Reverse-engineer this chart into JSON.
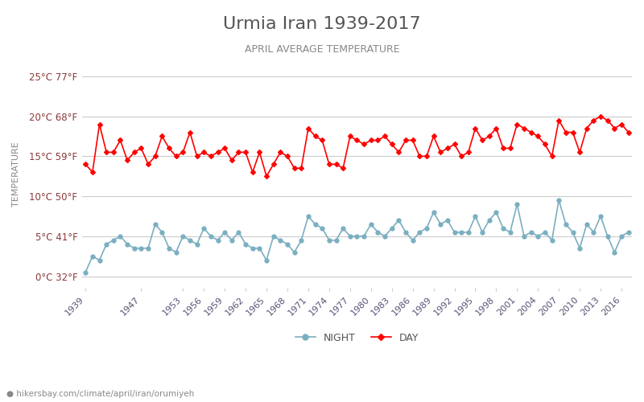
{
  "title": "Urmia Iran 1939-2017",
  "subtitle": "APRIL AVERAGE TEMPERATURE",
  "ylabel": "TEMPERATURE",
  "footer": "hikersbay.com/climate/april/iran/orumiyeh",
  "title_color": "#555555",
  "subtitle_color": "#777777",
  "ylabel_color": "#888888",
  "background_color": "#ffffff",
  "grid_color": "#cccccc",
  "day_color": "#ff0000",
  "night_color": "#7aafc0",
  "years": [
    1939,
    1940,
    1941,
    1942,
    1943,
    1944,
    1945,
    1946,
    1947,
    1948,
    1949,
    1950,
    1951,
    1952,
    1953,
    1954,
    1955,
    1956,
    1957,
    1958,
    1959,
    1960,
    1961,
    1962,
    1963,
    1964,
    1965,
    1966,
    1967,
    1968,
    1969,
    1970,
    1971,
    1972,
    1973,
    1974,
    1975,
    1976,
    1977,
    1978,
    1979,
    1980,
    1981,
    1982,
    1983,
    1984,
    1985,
    1986,
    1987,
    1988,
    1989,
    1990,
    1991,
    1992,
    1993,
    1994,
    1995,
    1996,
    1997,
    1998,
    1999,
    2000,
    2001,
    2002,
    2003,
    2004,
    2005,
    2006,
    2007,
    2008,
    2009,
    2010,
    2011,
    2012,
    2013,
    2014,
    2015,
    2016,
    2017
  ],
  "day_temps": [
    14.0,
    13.0,
    19.0,
    15.5,
    15.5,
    17.0,
    14.5,
    15.5,
    16.0,
    14.0,
    15.0,
    17.5,
    16.0,
    15.0,
    15.5,
    18.0,
    15.0,
    15.5,
    15.0,
    15.5,
    16.0,
    14.5,
    15.5,
    15.5,
    13.0,
    15.5,
    12.5,
    14.0,
    15.5,
    15.0,
    13.5,
    13.5,
    18.5,
    17.5,
    17.0,
    14.0,
    14.0,
    13.5,
    17.5,
    17.0,
    16.5,
    17.0,
    17.0,
    17.5,
    16.5,
    15.5,
    17.0,
    17.0,
    15.0,
    15.0,
    17.5,
    15.5,
    16.0,
    16.5,
    15.0,
    15.5,
    18.5,
    17.0,
    17.5,
    18.5,
    16.0,
    16.0,
    19.0,
    18.5,
    18.0,
    17.5,
    16.5,
    15.0,
    19.5,
    18.0,
    18.0,
    15.5,
    18.5,
    19.5,
    20.0,
    19.5,
    18.5,
    19.0,
    18.0
  ],
  "night_temps": [
    0.5,
    2.5,
    2.0,
    4.0,
    4.5,
    5.0,
    4.0,
    3.5,
    3.5,
    3.5,
    6.5,
    5.5,
    3.5,
    3.0,
    5.0,
    4.5,
    4.0,
    6.0,
    5.0,
    4.5,
    5.5,
    4.5,
    5.5,
    4.0,
    3.5,
    3.5,
    2.0,
    5.0,
    4.5,
    4.0,
    3.0,
    4.5,
    7.5,
    6.5,
    6.0,
    4.5,
    4.5,
    6.0,
    5.0,
    5.0,
    5.0,
    6.5,
    5.5,
    5.0,
    6.0,
    7.0,
    5.5,
    4.5,
    5.5,
    6.0,
    8.0,
    6.5,
    7.0,
    5.5,
    5.5,
    5.5,
    7.5,
    5.5,
    7.0,
    8.0,
    6.0,
    5.5,
    9.0,
    5.0,
    5.5,
    5.0,
    5.5,
    4.5,
    9.5,
    6.5,
    5.5,
    3.5,
    6.5,
    5.5,
    7.5,
    5.0,
    3.0,
    5.0,
    5.5
  ],
  "yticks_celsius": [
    0,
    5,
    10,
    15,
    20,
    25
  ],
  "yticks_labels": [
    "0°C 32°F",
    "5°C 41°F",
    "10°C 50°F",
    "15°C 59°F",
    "20°C 68°F",
    "25°C 77°F"
  ],
  "xtick_years": [
    1939,
    1947,
    1953,
    1956,
    1959,
    1962,
    1965,
    1968,
    1971,
    1974,
    1977,
    1980,
    1983,
    1986,
    1989,
    1992,
    1995,
    1998,
    2001,
    2004,
    2007,
    2010,
    2013,
    2016
  ],
  "ylim": [
    -1.5,
    27
  ],
  "xlim_min": 1938.5,
  "xlim_max": 2017.5
}
